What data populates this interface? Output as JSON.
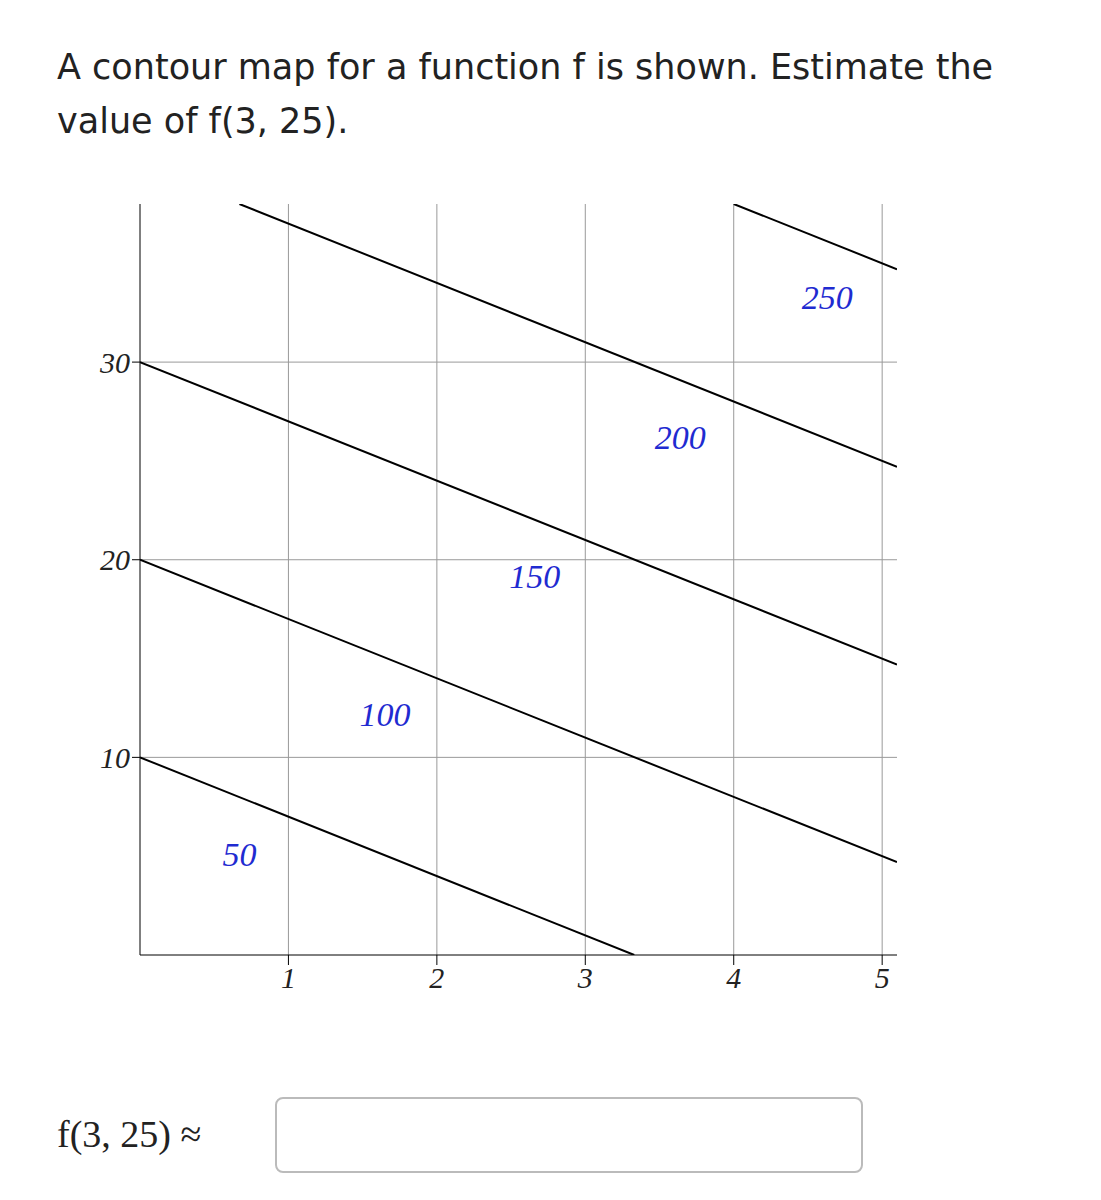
{
  "question": "A contour map for a function f is shown. Estimate the value of f(3, 25).",
  "answer_prompt": "f(3, 25) ≈",
  "chart_data": {
    "type": "line",
    "xlim": [
      0,
      5.1
    ],
    "xticks": [
      1,
      2,
      3,
      4,
      5
    ],
    "ylim": [
      0,
      38
    ],
    "yticks": [
      10,
      20,
      30
    ],
    "grid": true,
    "series": [
      {
        "name": "50",
        "color": "#000000",
        "x": [
          0,
          3.33
        ],
        "values": [
          10,
          0
        ],
        "label_at": [
          0.67,
          5.1
        ]
      },
      {
        "name": "100",
        "color": "#000000",
        "x": [
          0,
          5.1
        ],
        "values": [
          20,
          4.7
        ],
        "label_at": [
          1.65,
          12.2
        ]
      },
      {
        "name": "150",
        "color": "#000000",
        "x": [
          0,
          5.1
        ],
        "values": [
          30,
          14.7
        ],
        "label_at": [
          2.66,
          19.2
        ]
      },
      {
        "name": "200",
        "color": "#000000",
        "x": [
          0.67,
          5.1
        ],
        "values": [
          38,
          24.7
        ],
        "label_at": [
          3.64,
          26.2
        ]
      },
      {
        "name": "250",
        "color": "#000000",
        "x": [
          4,
          5.1
        ],
        "values": [
          38,
          34.7
        ],
        "label_at": [
          4.63,
          33.3
        ]
      }
    ]
  }
}
